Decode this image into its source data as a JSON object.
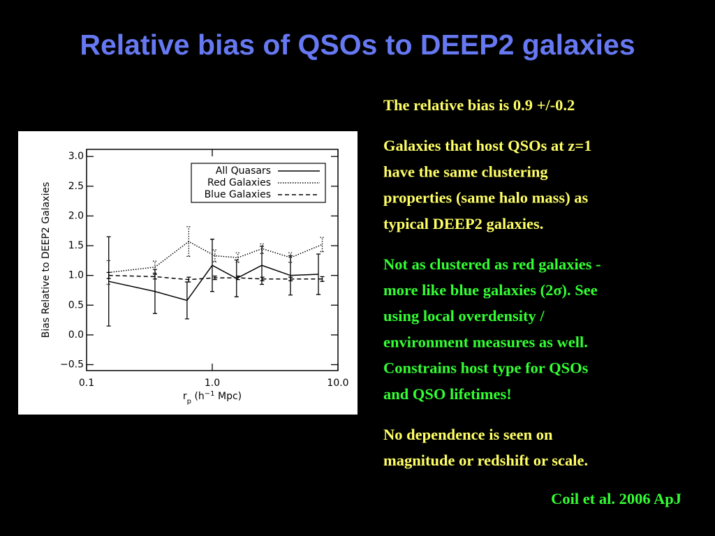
{
  "title": "Relative bias of QSOs to DEEP2 galaxies",
  "title_color": "#6678f2",
  "paragraphs": [
    {
      "color": "#ffff66",
      "lines": [
        "The relative bias is 0.9 +/-0.2"
      ]
    },
    {
      "color": "#ffff66",
      "lines": [
        "Galaxies that host QSOs at z=1",
        "have the same clustering",
        "properties (same halo mass) as",
        "typical DEEP2 galaxies."
      ]
    },
    {
      "color": "#33ff33",
      "lines": [
        "Not as clustered as red galaxies -",
        "more like blue galaxies (2σ).  See",
        "using local overdensity /",
        "environment measures as well.",
        "Constrains host type for QSOs",
        "and QSO lifetimes!"
      ]
    },
    {
      "color": "#ffff66",
      "lines": [
        "No dependence is seen on",
        "magnitude or redshift or scale."
      ]
    }
  ],
  "citation": "Coil et al. 2006 ApJ",
  "citation_color": "#33ff33",
  "chart_data": {
    "type": "line",
    "x_label": [
      "r",
      "p",
      " (h",
      "−1",
      " Mpc)"
    ],
    "y_label": "Bias Relative to DEEP2 Galaxies",
    "xlim": [
      0.1,
      10
    ],
    "xlog": true,
    "xticks": [
      0.1,
      {
        "value": 1,
        "label": "1.0"
      },
      {
        "value": 10,
        "label": "10.0"
      }
    ],
    "ylim": [
      -0.6,
      3.12
    ],
    "yticks": [
      {
        "value": -0.5,
        "label": "−0.5"
      },
      {
        "value": 0,
        "label": "0.0"
      },
      0.5,
      {
        "value": 1,
        "label": "1.0"
      },
      1.5,
      {
        "value": 2,
        "label": "2.0"
      },
      2.5,
      {
        "value": 3,
        "label": "3.0"
      }
    ],
    "legend": "top-right",
    "series": [
      {
        "name": "All Quasars",
        "color": "#000000",
        "line_style": "solid",
        "x": [
          0.15,
          0.35,
          0.63,
          1.0,
          1.56,
          2.48,
          4.19,
          6.99
        ],
        "values": [
          0.9,
          0.73,
          0.58,
          1.17,
          0.95,
          1.17,
          1.0,
          1.02
        ],
        "errors": [
          0.75,
          0.37,
          0.31,
          0.44,
          0.31,
          0.32,
          0.33,
          0.34
        ]
      },
      {
        "name": "Red Galaxies",
        "color": "#000000",
        "line_style": "dotted",
        "x": [
          0.15,
          0.35,
          0.65,
          1.05,
          1.6,
          2.5,
          4.2,
          7.5
        ],
        "values": [
          1.05,
          1.14,
          1.57,
          1.33,
          1.3,
          1.45,
          1.3,
          1.52
        ],
        "errors": [
          0.2,
          0.1,
          0.25,
          0.1,
          0.08,
          0.08,
          0.08,
          0.12
        ]
      },
      {
        "name": "Blue Galaxies",
        "color": "#000000",
        "line_style": "dashed",
        "x": [
          0.15,
          0.35,
          0.65,
          1.05,
          1.6,
          2.5,
          4.2,
          7.5
        ],
        "values": [
          1.0,
          0.98,
          0.93,
          0.96,
          0.96,
          0.94,
          0.94,
          0.94
        ],
        "errors": [
          0.05,
          0.04,
          0.04,
          0.03,
          0.03,
          0.03,
          0.03,
          0.04
        ]
      }
    ]
  }
}
